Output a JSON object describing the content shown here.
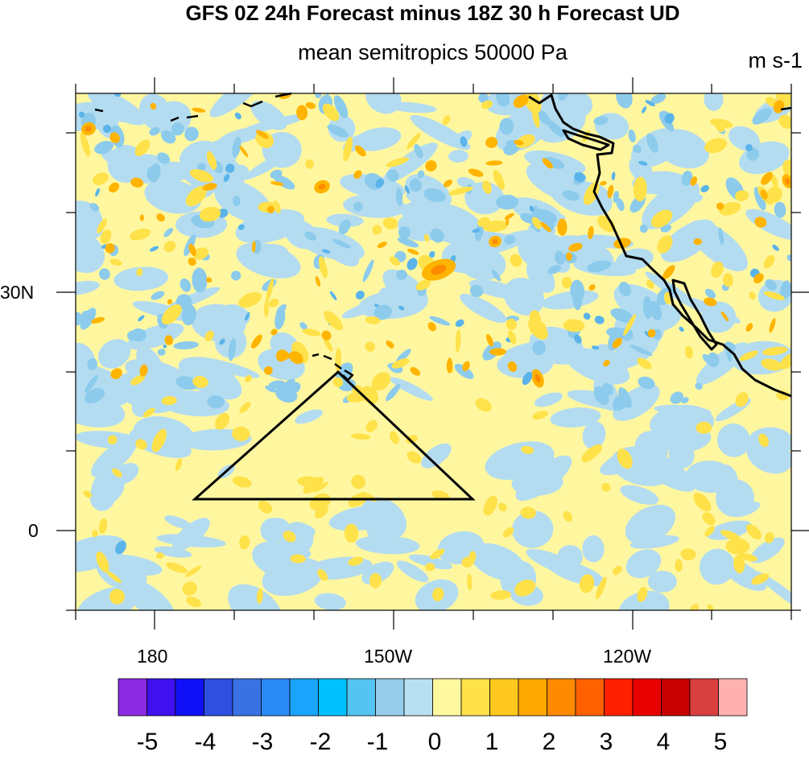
{
  "header": {
    "title": "GFS 0Z 24h Forecast minus 18Z 30 h Forecast UD",
    "subtitle": "mean semitropics 50000 Pa",
    "units": "m s-1"
  },
  "map": {
    "lat_labels": [
      "30N",
      "0"
    ],
    "lon_labels": [
      "180",
      "150W",
      "120W"
    ],
    "field_colors": {
      "light_blue": "#b4dcf0",
      "mid_blue": "#8ccbec",
      "deep_blue": "#5ab4ea",
      "light_yellow": "#fff7a0",
      "yellow": "#ffe14a",
      "orange": "#ffb400",
      "dark_orange": "#ff8a00"
    }
  },
  "colorbar": {
    "labels": [
      "-5",
      "-4",
      "-3",
      "-2",
      "-1",
      "0",
      "1",
      "2",
      "3",
      "4",
      "5"
    ],
    "colors": [
      "#8a2be2",
      "#4010f0",
      "#1010f8",
      "#2f4fe0",
      "#3a72e4",
      "#2a8af6",
      "#1aa4fb",
      "#00c0ff",
      "#54c4f0",
      "#96cdea",
      "#b8e0f2",
      "#fff8a0",
      "#ffe14a",
      "#ffc81e",
      "#ffa800",
      "#ff8a00",
      "#ff6000",
      "#ff2000",
      "#e80000",
      "#c80000",
      "#d84040",
      "#ffb0b0"
    ]
  }
}
